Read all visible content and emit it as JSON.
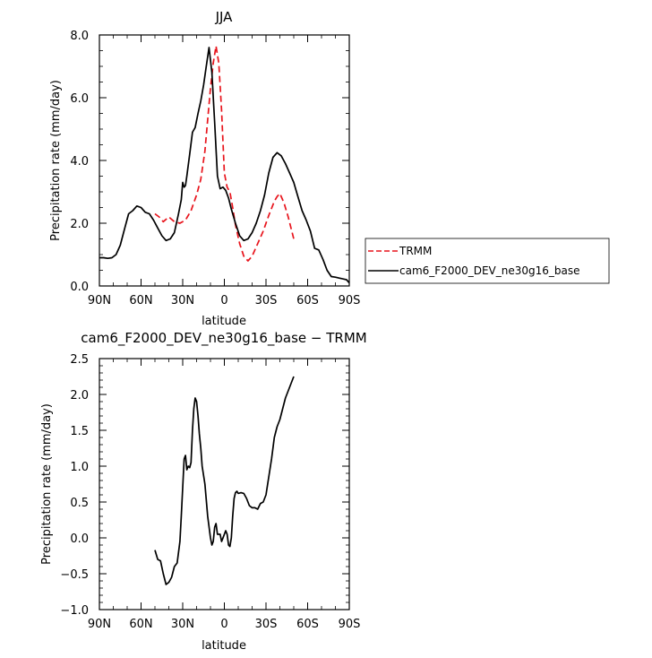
{
  "chart_data": [
    {
      "type": "line",
      "title": "JJA",
      "xlabel": "latitude",
      "ylabel": "Precipitation rate (mm/day)",
      "xlim": [
        90,
        -90
      ],
      "ylim": [
        0,
        8
      ],
      "x_tick_values": [
        90,
        60,
        30,
        0,
        -30,
        -60,
        -90
      ],
      "x_tick_labels": [
        "90N",
        "60N",
        "30N",
        "0",
        "30S",
        "60S",
        "90S"
      ],
      "y_tick_values": [
        0,
        2,
        4,
        6,
        8
      ],
      "y_tick_labels": [
        "0.0",
        "2.0",
        "4.0",
        "6.0",
        "8.0"
      ],
      "legend": {
        "position": "right",
        "entries": [
          "TRMM",
          "cam6_F2000_DEV_ne30g16_base"
        ]
      },
      "series": [
        {
          "name": "TRMM",
          "color": "#e8141c",
          "dash": "dashed",
          "x": [
            50,
            47,
            44,
            40,
            36,
            32,
            28,
            24,
            20,
            17,
            14,
            12,
            10,
            8,
            6,
            4,
            2,
            0,
            -2,
            -4,
            -6,
            -8,
            -11,
            -14,
            -17,
            -20,
            -24,
            -28,
            -32,
            -36,
            -38,
            -40,
            -43,
            -46,
            -50
          ],
          "y": [
            2.3,
            2.2,
            2.05,
            2.2,
            2.05,
            2.0,
            2.1,
            2.4,
            2.9,
            3.4,
            4.3,
            5.3,
            6.3,
            7.1,
            7.65,
            7.1,
            5.6,
            3.6,
            3.15,
            3.0,
            2.5,
            1.95,
            1.35,
            0.95,
            0.8,
            0.95,
            1.35,
            1.75,
            2.25,
            2.7,
            2.85,
            2.95,
            2.65,
            2.2,
            1.5
          ]
        },
        {
          "name": "cam6_F2000_DEV_ne30g16_base",
          "color": "#000000",
          "dash": "solid",
          "x": [
            90,
            87,
            84,
            81,
            78,
            75,
            72,
            69,
            66,
            63,
            60,
            57,
            54,
            51,
            48,
            45,
            42,
            39,
            36,
            33,
            31,
            30,
            29,
            28,
            27,
            25,
            23,
            21,
            19,
            17,
            15,
            13,
            11,
            9,
            7,
            5,
            3,
            1,
            -1,
            -3,
            -5,
            -8,
            -11,
            -14,
            -17,
            -20,
            -23,
            -26,
            -29,
            -32,
            -35,
            -38,
            -41,
            -44,
            -47,
            -50,
            -53,
            -56,
            -59,
            -62,
            -65,
            -68,
            -71,
            -74,
            -77,
            -80,
            -83,
            -86,
            -88,
            -90
          ],
          "y": [
            0.9,
            0.9,
            0.88,
            0.9,
            1.0,
            1.3,
            1.8,
            2.3,
            2.4,
            2.55,
            2.5,
            2.35,
            2.3,
            2.1,
            1.85,
            1.6,
            1.45,
            1.5,
            1.7,
            2.3,
            2.75,
            3.3,
            3.15,
            3.2,
            3.5,
            4.2,
            4.9,
            5.05,
            5.5,
            5.9,
            6.4,
            7.0,
            7.6,
            6.8,
            5.2,
            3.5,
            3.1,
            3.15,
            3.05,
            2.8,
            2.45,
            2.0,
            1.6,
            1.45,
            1.5,
            1.7,
            2.0,
            2.4,
            2.9,
            3.6,
            4.1,
            4.25,
            4.15,
            3.9,
            3.6,
            3.3,
            2.85,
            2.4,
            2.1,
            1.75,
            1.2,
            1.15,
            0.85,
            0.5,
            0.3,
            0.28,
            0.25,
            0.22,
            0.2,
            0.1
          ]
        }
      ]
    },
    {
      "type": "line",
      "title": "cam6_F2000_DEV_ne30g16_base − TRMM",
      "xlabel": "latitude",
      "ylabel": "Precipitation rate (mm/day)",
      "xlim": [
        90,
        -90
      ],
      "ylim": [
        -1,
        2.5
      ],
      "x_tick_values": [
        90,
        60,
        30,
        0,
        -30,
        -60,
        -90
      ],
      "x_tick_labels": [
        "90N",
        "60N",
        "30N",
        "0",
        "30S",
        "60S",
        "90S"
      ],
      "y_tick_values": [
        -1,
        -0.5,
        0,
        0.5,
        1,
        1.5,
        2,
        2.5
      ],
      "y_tick_labels": [
        "−1.0",
        "−0.5",
        "0.0",
        "0.5",
        "1.0",
        "1.5",
        "2.0",
        "2.5"
      ],
      "series": [
        {
          "color": "#000000",
          "dash": "solid",
          "x": [
            50,
            48,
            46,
            44,
            42,
            40,
            38,
            36,
            34,
            32,
            31,
            30,
            29,
            28,
            27,
            26,
            25,
            24,
            23,
            22,
            21,
            20,
            19,
            18,
            17,
            16,
            14,
            12,
            10,
            9,
            8,
            7,
            6,
            5,
            4,
            3,
            2,
            1,
            0,
            -1,
            -2,
            -3,
            -4,
            -5,
            -6,
            -7,
            -8,
            -9,
            -10,
            -12,
            -14,
            -16,
            -18,
            -20,
            -22,
            -24,
            -26,
            -28,
            -30,
            -32,
            -34,
            -36,
            -38,
            -40,
            -42,
            -44,
            -46,
            -48,
            -50
          ],
          "y": [
            -0.17,
            -0.3,
            -0.32,
            -0.5,
            -0.65,
            -0.62,
            -0.55,
            -0.4,
            -0.35,
            -0.05,
            0.3,
            0.7,
            1.1,
            1.15,
            0.95,
            1.0,
            0.98,
            1.05,
            1.5,
            1.8,
            1.95,
            1.9,
            1.7,
            1.45,
            1.25,
            1.0,
            0.75,
            0.3,
            0.0,
            -0.1,
            -0.05,
            0.15,
            0.2,
            0.05,
            0.05,
            0.05,
            -0.05,
            0.0,
            0.05,
            0.1,
            0.05,
            -0.1,
            -0.12,
            0.0,
            0.3,
            0.55,
            0.63,
            0.65,
            0.62,
            0.63,
            0.62,
            0.55,
            0.45,
            0.42,
            0.42,
            0.4,
            0.48,
            0.5,
            0.6,
            0.85,
            1.1,
            1.4,
            1.55,
            1.65,
            1.8,
            1.95,
            2.05,
            2.15,
            2.25
          ]
        }
      ]
    }
  ]
}
